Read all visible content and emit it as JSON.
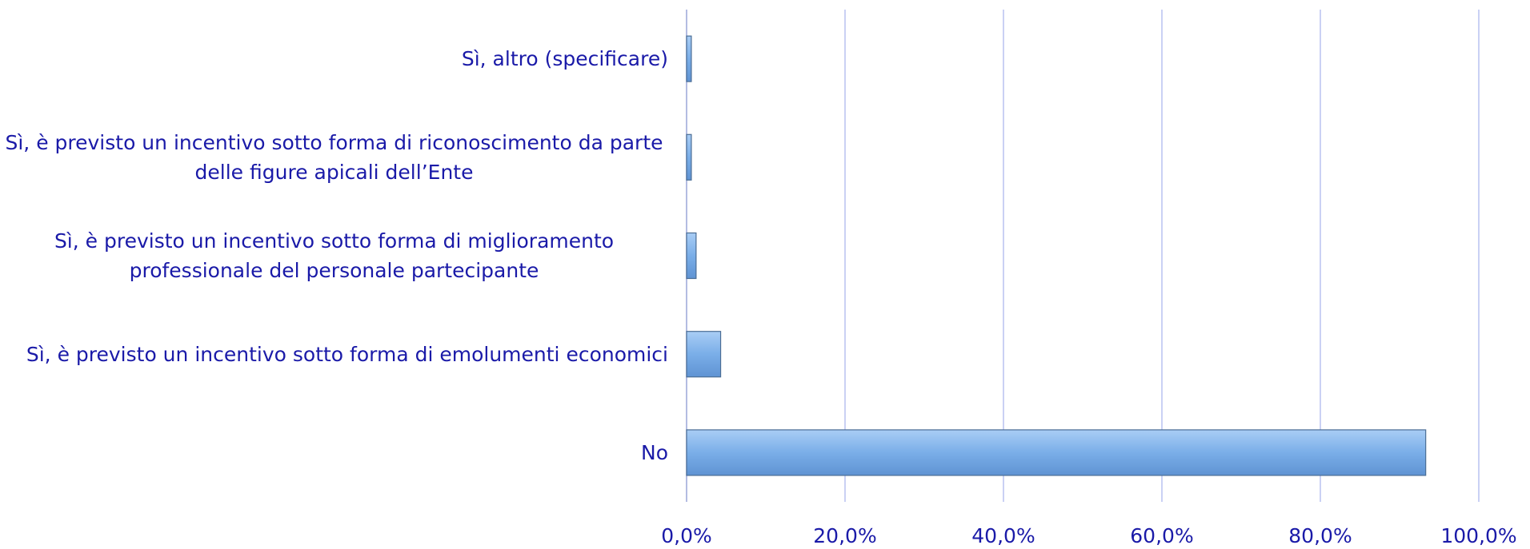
{
  "chart_data": {
    "type": "bar",
    "orientation": "horizontal",
    "categories": [
      "Sì, altro (specificare)",
      "Sì, è previsto un incentivo sotto forma di riconoscimento da parte delle figure apicali dell’Ente",
      "Sì, è previsto un incentivo sotto forma di miglioramento professionale del personale partecipante",
      "Sì, è previsto un incentivo sotto forma di emolumenti economici",
      "No"
    ],
    "values": [
      0.6,
      0.6,
      1.2,
      4.3,
      93.3
    ],
    "color": "#7aaee8",
    "xlim": [
      0,
      100
    ],
    "xticks": [
      {
        "value": 0,
        "label": "0,0%"
      },
      {
        "value": 20,
        "label": "20,0%"
      },
      {
        "value": 40,
        "label": "40,0%"
      },
      {
        "value": 60,
        "label": "60,0%"
      },
      {
        "value": 80,
        "label": "80,0%"
      },
      {
        "value": 100,
        "label": "100,0%"
      }
    ],
    "grid": true
  }
}
